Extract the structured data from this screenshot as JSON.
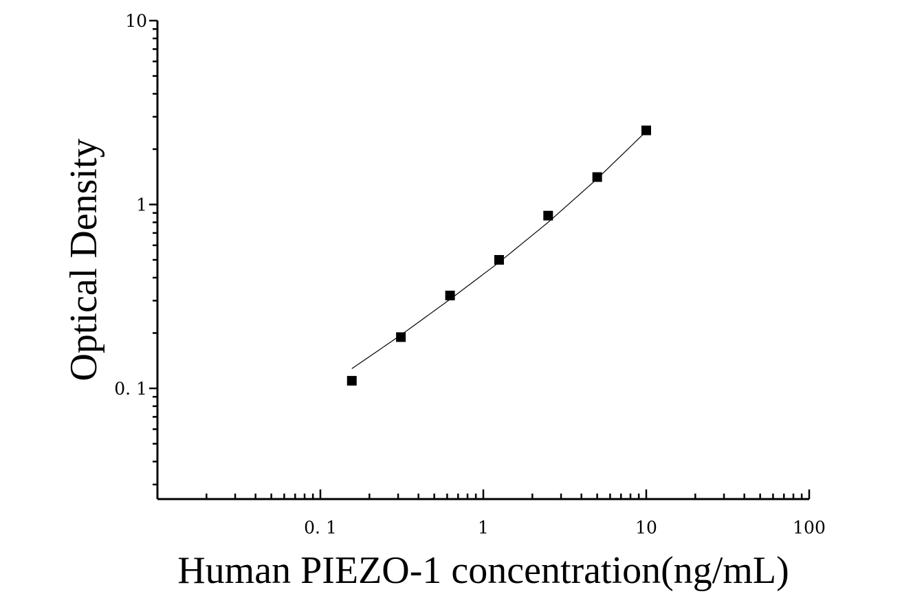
{
  "chart_data": {
    "type": "scatter",
    "title": "",
    "xlabel": "Human PIEZO-1 concentration(ng/mL)",
    "ylabel": "Optical Density",
    "x_scale": "log",
    "y_scale": "log",
    "xlim": [
      0.01,
      100
    ],
    "ylim": [
      0.025,
      10
    ],
    "x_tick_labels": [
      {
        "value": 0.1,
        "label": "0. 1"
      },
      {
        "value": 1,
        "label": "1"
      },
      {
        "value": 10,
        "label": "10"
      },
      {
        "value": 100,
        "label": "100"
      }
    ],
    "y_tick_labels": [
      {
        "value": 0.1,
        "label": "0. 1"
      },
      {
        "value": 1,
        "label": "1"
      },
      {
        "value": 10,
        "label": "10"
      }
    ],
    "grid": false,
    "legend": "none",
    "series": [
      {
        "marker": "square",
        "color": "#000000",
        "x": [
          0.156,
          0.312,
          0.625,
          1.25,
          2.5,
          5,
          10
        ],
        "y": [
          0.11,
          0.19,
          0.32,
          0.5,
          0.87,
          1.41,
          2.53
        ]
      }
    ],
    "fit_curve": {
      "style": "line",
      "color": "#000000",
      "x": [
        0.156,
        0.312,
        0.625,
        1.25,
        2.5,
        5,
        10
      ],
      "y": [
        0.128,
        0.195,
        0.305,
        0.485,
        0.8,
        1.38,
        2.5
      ]
    }
  }
}
